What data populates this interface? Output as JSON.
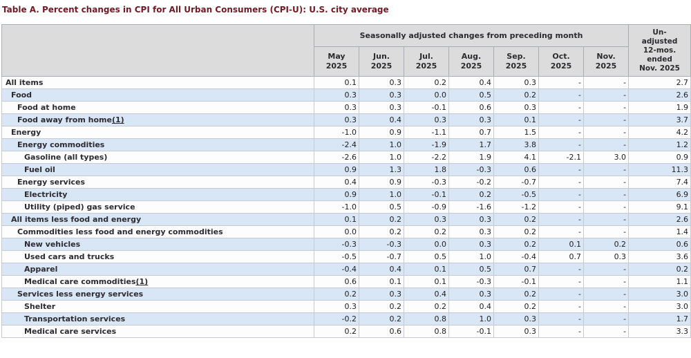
{
  "title": "Table A. Percent changes in CPI for All Urban Consumers (CPI-U): U.S. city average",
  "table": {
    "group_header": "Seasonally adjusted changes from preceding month",
    "unadjusted_header": "Un-\nadjusted\n12-mos.\nended\nNov. 2025",
    "month_columns": [
      "May\n2025",
      "Jun.\n2025",
      "Jul.\n2025",
      "Aug.\n2025",
      "Sep.\n2025",
      "Oct.\n2025",
      "Nov.\n2025"
    ],
    "rows": [
      {
        "label": "All items",
        "indent": 0,
        "values": [
          "0.1",
          "0.3",
          "0.2",
          "0.4",
          "0.3",
          "-",
          "-",
          "2.7"
        ]
      },
      {
        "label": "Food",
        "indent": 1,
        "values": [
          "0.3",
          "0.3",
          "0.0",
          "0.5",
          "0.2",
          "-",
          "-",
          "2.6"
        ]
      },
      {
        "label": "Food at home",
        "indent": 2,
        "values": [
          "0.3",
          "0.3",
          "-0.1",
          "0.6",
          "0.3",
          "-",
          "-",
          "1.9"
        ]
      },
      {
        "label": "Food away from home",
        "footnote": "(1)",
        "indent": 2,
        "values": [
          "0.3",
          "0.4",
          "0.3",
          "0.3",
          "0.1",
          "-",
          "-",
          "3.7"
        ]
      },
      {
        "label": "Energy",
        "indent": 1,
        "values": [
          "-1.0",
          "0.9",
          "-1.1",
          "0.7",
          "1.5",
          "-",
          "-",
          "4.2"
        ]
      },
      {
        "label": "Energy commodities",
        "indent": 2,
        "values": [
          "-2.4",
          "1.0",
          "-1.9",
          "1.7",
          "3.8",
          "-",
          "-",
          "1.2"
        ]
      },
      {
        "label": "Gasoline (all types)",
        "indent": 3,
        "values": [
          "-2.6",
          "1.0",
          "-2.2",
          "1.9",
          "4.1",
          "-2.1",
          "3.0",
          "0.9"
        ]
      },
      {
        "label": "Fuel oil",
        "indent": 3,
        "values": [
          "0.9",
          "1.3",
          "1.8",
          "-0.3",
          "0.6",
          "-",
          "-",
          "11.3"
        ]
      },
      {
        "label": "Energy services",
        "indent": 2,
        "values": [
          "0.4",
          "0.9",
          "-0.3",
          "-0.2",
          "-0.7",
          "-",
          "-",
          "7.4"
        ]
      },
      {
        "label": "Electricity",
        "indent": 3,
        "values": [
          "0.9",
          "1.0",
          "-0.1",
          "0.2",
          "-0.5",
          "-",
          "-",
          "6.9"
        ]
      },
      {
        "label": "Utility (piped) gas service",
        "indent": 3,
        "values": [
          "-1.0",
          "0.5",
          "-0.9",
          "-1.6",
          "-1.2",
          "-",
          "-",
          "9.1"
        ]
      },
      {
        "label": "All items less food and energy",
        "indent": 1,
        "values": [
          "0.1",
          "0.2",
          "0.3",
          "0.3",
          "0.2",
          "-",
          "-",
          "2.6"
        ]
      },
      {
        "label": "Commodities less food and energy commodities",
        "indent": 2,
        "values": [
          "0.0",
          "0.2",
          "0.2",
          "0.3",
          "0.2",
          "-",
          "-",
          "1.4"
        ]
      },
      {
        "label": "New vehicles",
        "indent": 3,
        "values": [
          "-0.3",
          "-0.3",
          "0.0",
          "0.3",
          "0.2",
          "0.1",
          "0.2",
          "0.6"
        ]
      },
      {
        "label": "Used cars and trucks",
        "indent": 3,
        "values": [
          "-0.5",
          "-0.7",
          "0.5",
          "1.0",
          "-0.4",
          "0.7",
          "0.3",
          "3.6"
        ]
      },
      {
        "label": "Apparel",
        "indent": 3,
        "values": [
          "-0.4",
          "0.4",
          "0.1",
          "0.5",
          "0.7",
          "-",
          "-",
          "0.2"
        ]
      },
      {
        "label": "Medical care commodities",
        "footnote": "(1)",
        "indent": 3,
        "values": [
          "0.6",
          "0.1",
          "0.1",
          "-0.3",
          "-0.1",
          "-",
          "-",
          "1.1"
        ]
      },
      {
        "label": "Services less energy services",
        "indent": 2,
        "values": [
          "0.2",
          "0.3",
          "0.4",
          "0.3",
          "0.2",
          "-",
          "-",
          "3.0"
        ]
      },
      {
        "label": "Shelter",
        "indent": 3,
        "values": [
          "0.3",
          "0.2",
          "0.2",
          "0.4",
          "0.2",
          "-",
          "-",
          "3.0"
        ]
      },
      {
        "label": "Transportation services",
        "indent": 3,
        "values": [
          "-0.2",
          "0.2",
          "0.8",
          "1.0",
          "0.3",
          "-",
          "-",
          "1.7"
        ]
      },
      {
        "label": "Medical care services",
        "indent": 3,
        "values": [
          "0.2",
          "0.6",
          "0.8",
          "-0.1",
          "0.3",
          "-",
          "-",
          "3.3"
        ]
      }
    ]
  },
  "colors": {
    "title_maroon": "#701b24",
    "header_bg": "#dcdcdc",
    "stripe_blue": "#d9e6f6",
    "stripe_white": "#fdfdfe",
    "grid_border": "#c6cace"
  }
}
